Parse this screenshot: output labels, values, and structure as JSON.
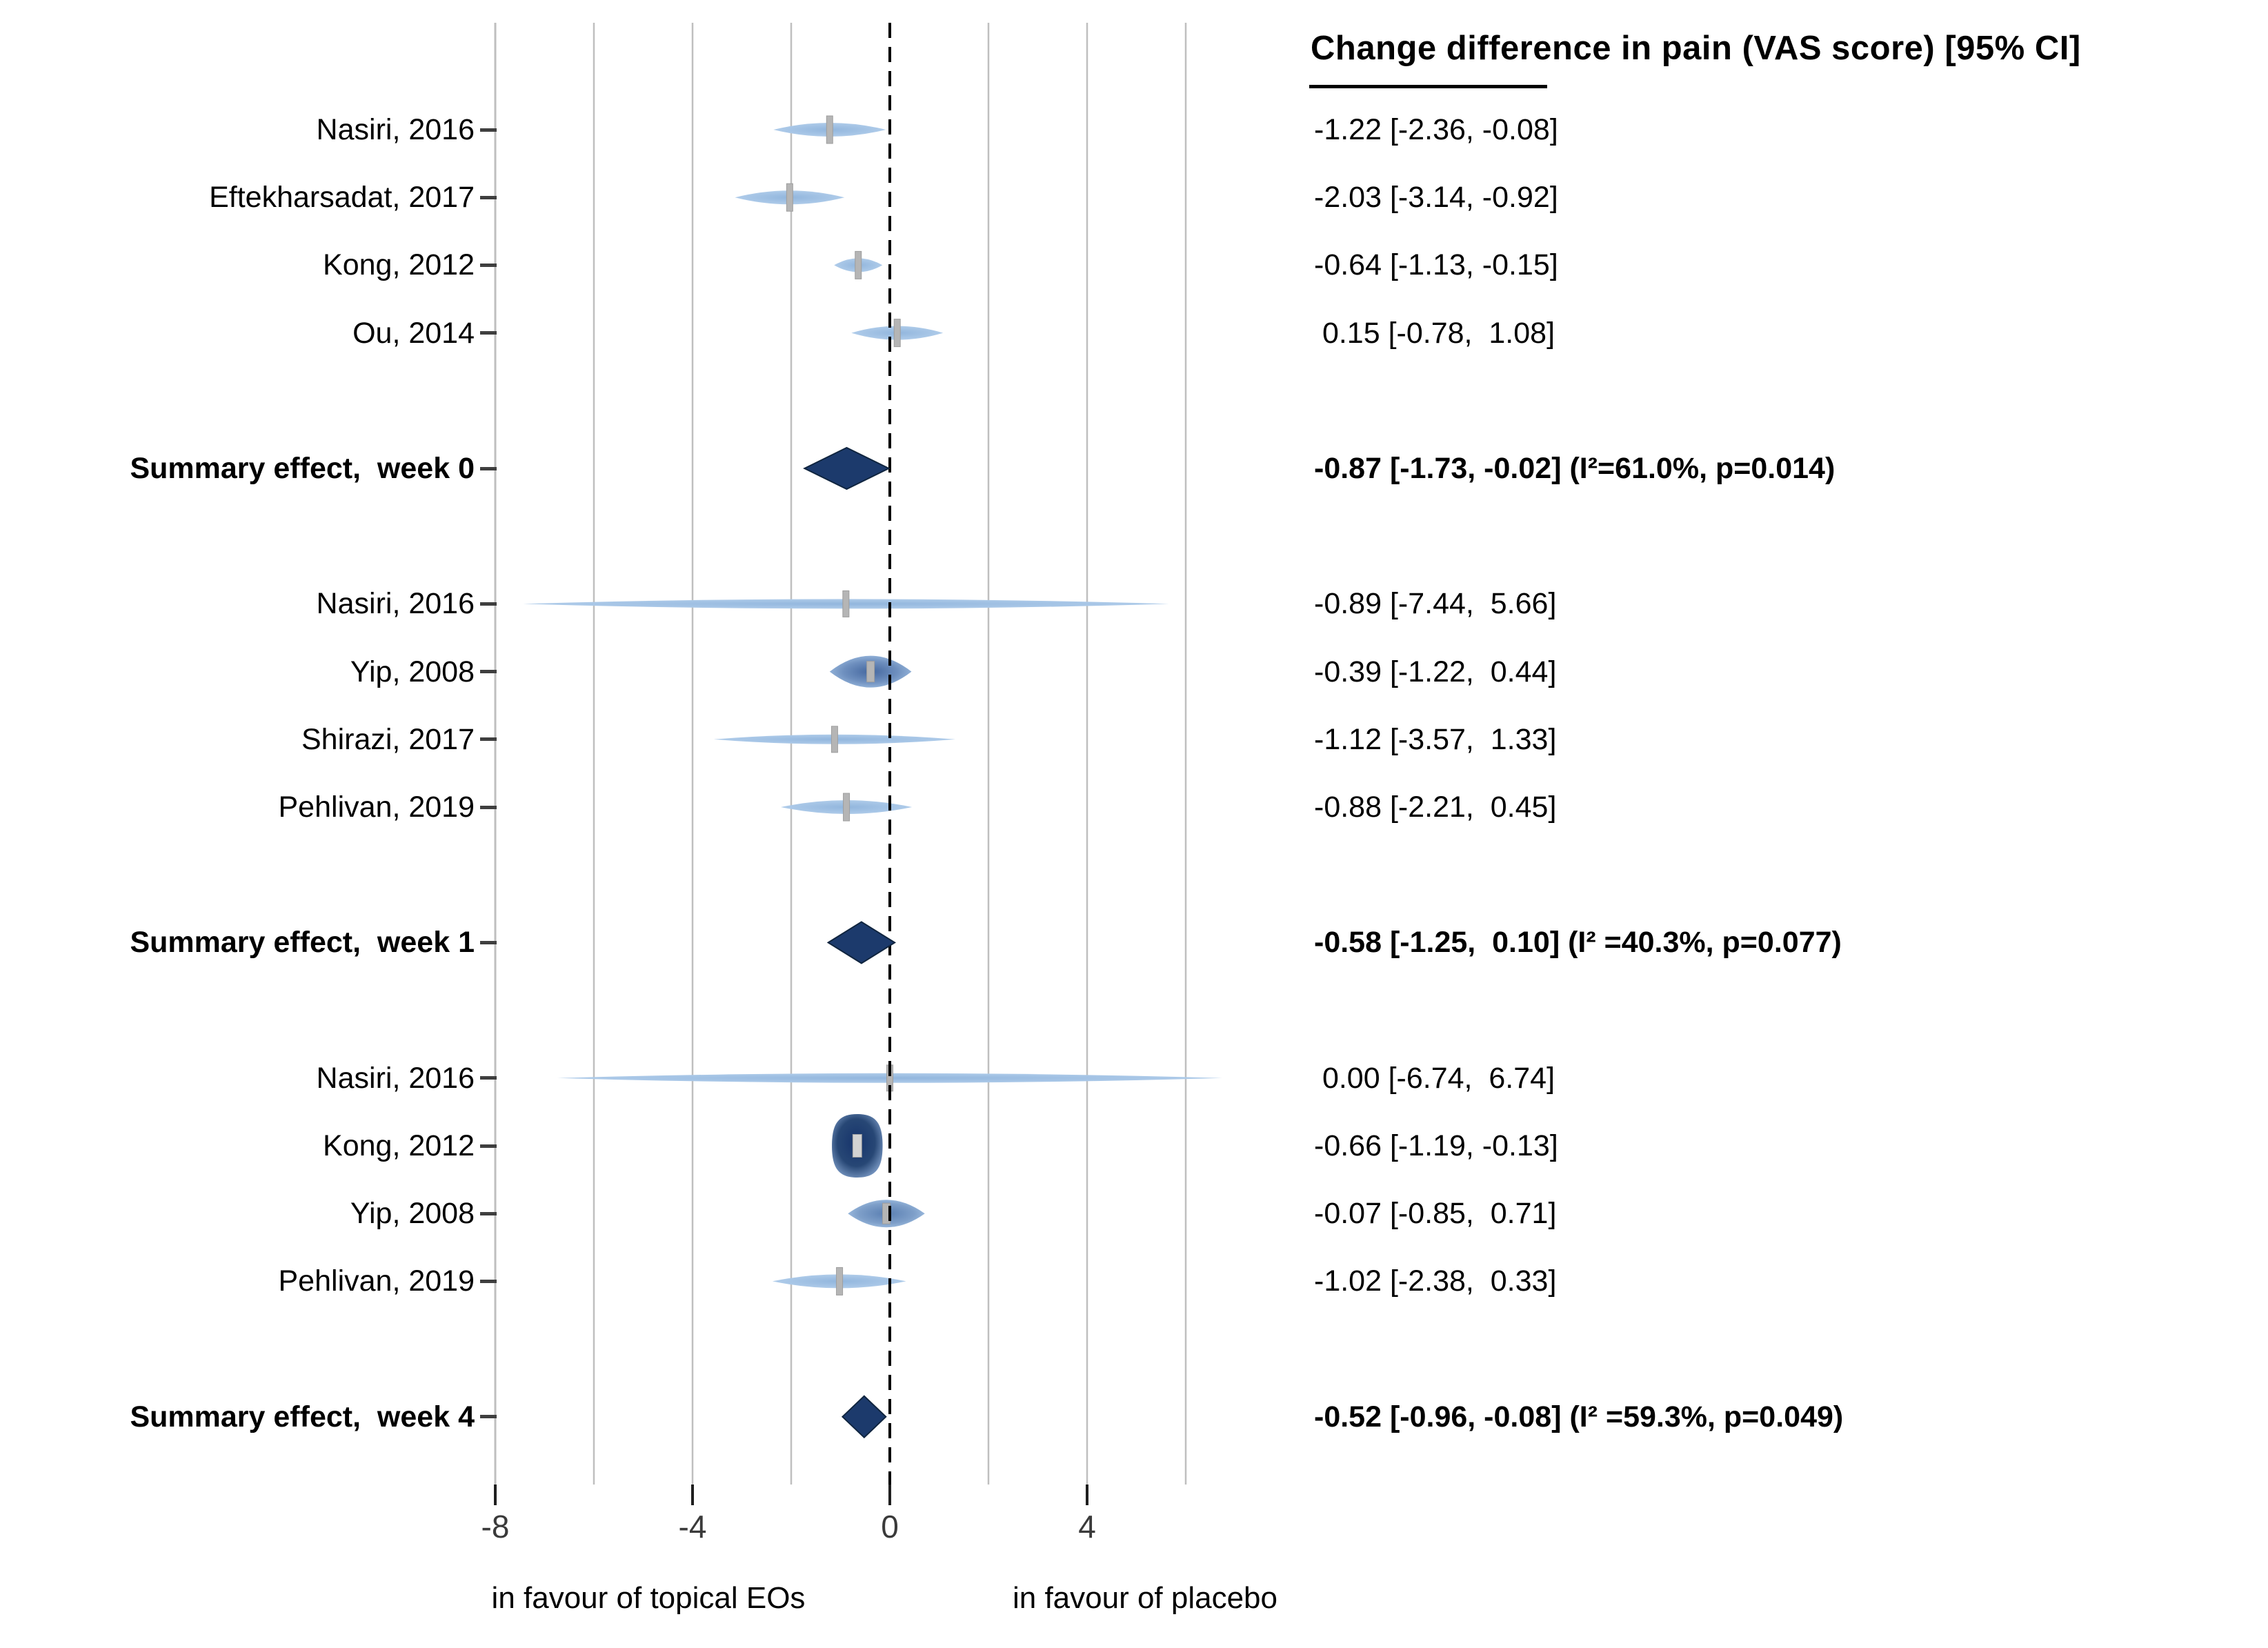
{
  "header": {
    "title": "Change difference in pain (VAS score) [95% CI]"
  },
  "colors": {
    "summary_diamond": "#1c3a6c",
    "summary_diamond_edge": "#10253f",
    "study_light_blue": "#a6c5e6",
    "study_dark_navy": "#16336b",
    "estimate_tick_grey": "#b5b5b5",
    "gridline_grey": "#bfbfbf",
    "zero_line_black": "#000000"
  },
  "chart_data": {
    "type": "forest",
    "title": "Change difference in pain (VAS score) [95% CI]",
    "xlim": [
      -8,
      7
    ],
    "x_ticks": [
      {
        "value": -8,
        "label": "-8"
      },
      {
        "value": -4,
        "label": "-4"
      },
      {
        "value": 0,
        "label": "0"
      },
      {
        "value": 4,
        "label": "4"
      }
    ],
    "gridline_values": [
      -8,
      -6,
      -4,
      -2,
      2,
      4,
      6
    ],
    "zero_line_value": 0,
    "xlabel_left": "in favour of topical EOs",
    "xlabel_right": "in favour of placebo",
    "grid": true,
    "legend": false,
    "rows": [
      {
        "slot": 1,
        "kind": "study",
        "label": "Nasiri, 2016",
        "estimate": -1.22,
        "ci": [
          -2.36,
          -0.08
        ],
        "text": "-1.22 [-2.36, -0.08]",
        "size": "small"
      },
      {
        "slot": 2,
        "kind": "study",
        "label": "Eftekharsadat, 2017",
        "estimate": -2.03,
        "ci": [
          -3.14,
          -0.92
        ],
        "text": "-2.03 [-3.14, -0.92]",
        "size": "small"
      },
      {
        "slot": 3,
        "kind": "study",
        "label": "Kong, 2012",
        "estimate": -0.64,
        "ci": [
          -1.13,
          -0.15
        ],
        "text": "-0.64 [-1.13, -0.15]",
        "size": "small"
      },
      {
        "slot": 4,
        "kind": "study",
        "label": "Ou, 2014",
        "estimate": 0.15,
        "ci": [
          -0.78,
          1.08
        ],
        "text": " 0.15 [-0.78,  1.08]",
        "size": "small"
      },
      {
        "slot": 6,
        "kind": "summary",
        "label": "Summary effect,  week 0",
        "estimate": -0.87,
        "ci": [
          -1.73,
          -0.02
        ],
        "text": "-0.87 [-1.73, -0.02] (I²=61.0%, p=0.014)",
        "i2": "61.0%",
        "p": "0.014"
      },
      {
        "slot": 8,
        "kind": "study",
        "label": "Nasiri, 2016",
        "estimate": -0.89,
        "ci": [
          -7.44,
          5.66
        ],
        "text": "-0.89 [-7.44,  5.66]",
        "size": "xsmall"
      },
      {
        "slot": 9,
        "kind": "study",
        "label": "Yip, 2008",
        "estimate": -0.39,
        "ci": [
          -1.22,
          0.44
        ],
        "text": "-0.39 [-1.22,  0.44]",
        "size": "large"
      },
      {
        "slot": 10,
        "kind": "study",
        "label": "Shirazi, 2017",
        "estimate": -1.12,
        "ci": [
          -3.57,
          1.33
        ],
        "text": "-1.12 [-3.57,  1.33]",
        "size": "xsmall"
      },
      {
        "slot": 11,
        "kind": "study",
        "label": "Pehlivan, 2019",
        "estimate": -0.88,
        "ci": [
          -2.21,
          0.45
        ],
        "text": "-0.88 [-2.21,  0.45]",
        "size": "small"
      },
      {
        "slot": 13,
        "kind": "summary",
        "label": "Summary effect,  week 1",
        "estimate": -0.58,
        "ci": [
          -1.25,
          0.1
        ],
        "text": "-0.58 [-1.25,  0.10] (I² =40.3%, p=0.077)",
        "i2": "40.3%",
        "p": "0.077"
      },
      {
        "slot": 15,
        "kind": "study",
        "label": "Nasiri, 2016",
        "estimate": 0.0,
        "ci": [
          -6.74,
          6.74
        ],
        "text": " 0.00 [-6.74,  6.74]",
        "size": "xsmall"
      },
      {
        "slot": 16,
        "kind": "study",
        "label": "Kong, 2012",
        "estimate": -0.66,
        "ci": [
          -1.19,
          -0.13
        ],
        "text": "-0.66 [-1.19, -0.13]",
        "size": "xlarge"
      },
      {
        "slot": 17,
        "kind": "study",
        "label": "Yip, 2008",
        "estimate": -0.07,
        "ci": [
          -0.85,
          0.71
        ],
        "text": "-0.07 [-0.85,  0.71]",
        "size": "medium"
      },
      {
        "slot": 18,
        "kind": "study",
        "label": "Pehlivan, 2019",
        "estimate": -1.02,
        "ci": [
          -2.38,
          0.33
        ],
        "text": "-1.02 [-2.38,  0.33]",
        "size": "small"
      },
      {
        "slot": 20,
        "kind": "summary",
        "label": "Summary effect,  week 4",
        "estimate": -0.52,
        "ci": [
          -0.96,
          -0.08
        ],
        "text": "-0.52 [-0.96, -0.08] (I² =59.3%, p=0.049)",
        "i2": "59.3%",
        "p": "0.049"
      }
    ]
  }
}
